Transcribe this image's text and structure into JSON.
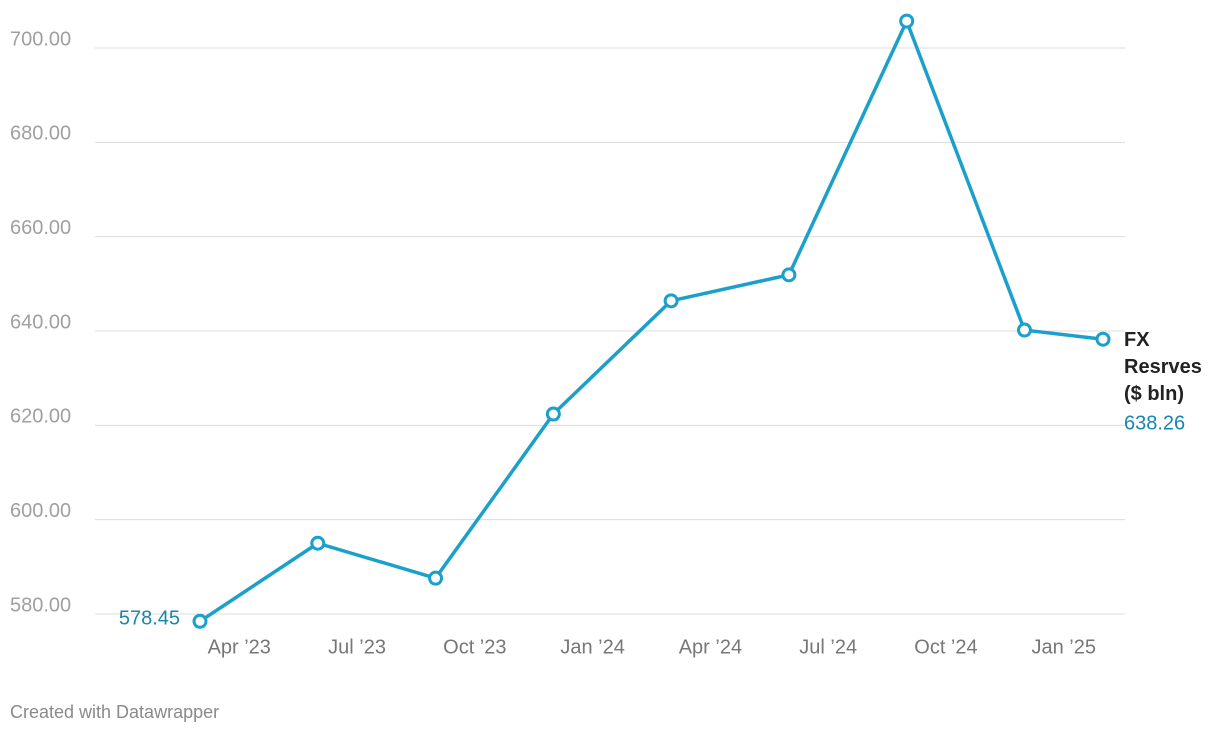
{
  "chart_data": {
    "type": "line",
    "x": [
      "2023-03",
      "2023-06",
      "2023-09",
      "2023-12",
      "2024-03",
      "2024-06",
      "2024-09",
      "2024-12",
      "2025-02"
    ],
    "xlim": [
      "2023-03",
      "2025-02"
    ],
    "xticks": [
      {
        "value": "2023-04",
        "label": "Apr ’23"
      },
      {
        "value": "2023-07",
        "label": "Jul ’23"
      },
      {
        "value": "2023-10",
        "label": "Oct ’23"
      },
      {
        "value": "2024-01",
        "label": "Jan ’24"
      },
      {
        "value": "2024-04",
        "label": "Apr ’24"
      },
      {
        "value": "2024-07",
        "label": "Jul ’24"
      },
      {
        "value": "2024-10",
        "label": "Oct ’24"
      },
      {
        "value": "2025-01",
        "label": "Jan ’25"
      }
    ],
    "ylim": [
      580,
      700
    ],
    "yticks": [
      {
        "value": 580,
        "label": "580.00"
      },
      {
        "value": 600,
        "label": "600.00"
      },
      {
        "value": 620,
        "label": "620.00"
      },
      {
        "value": 640,
        "label": "640.00"
      },
      {
        "value": 660,
        "label": "660.00"
      },
      {
        "value": 680,
        "label": "680.00"
      },
      {
        "value": 700,
        "label": "700.00"
      }
    ],
    "grid": true,
    "series": [
      {
        "name": "FX Resrves ($ bln)",
        "color": "#1ba0cc",
        "values": [
          578.45,
          595.0,
          587.6,
          622.4,
          646.4,
          651.9,
          705.7,
          640.2,
          638.26
        ]
      }
    ],
    "footer": "Created with Datawrapper"
  }
}
